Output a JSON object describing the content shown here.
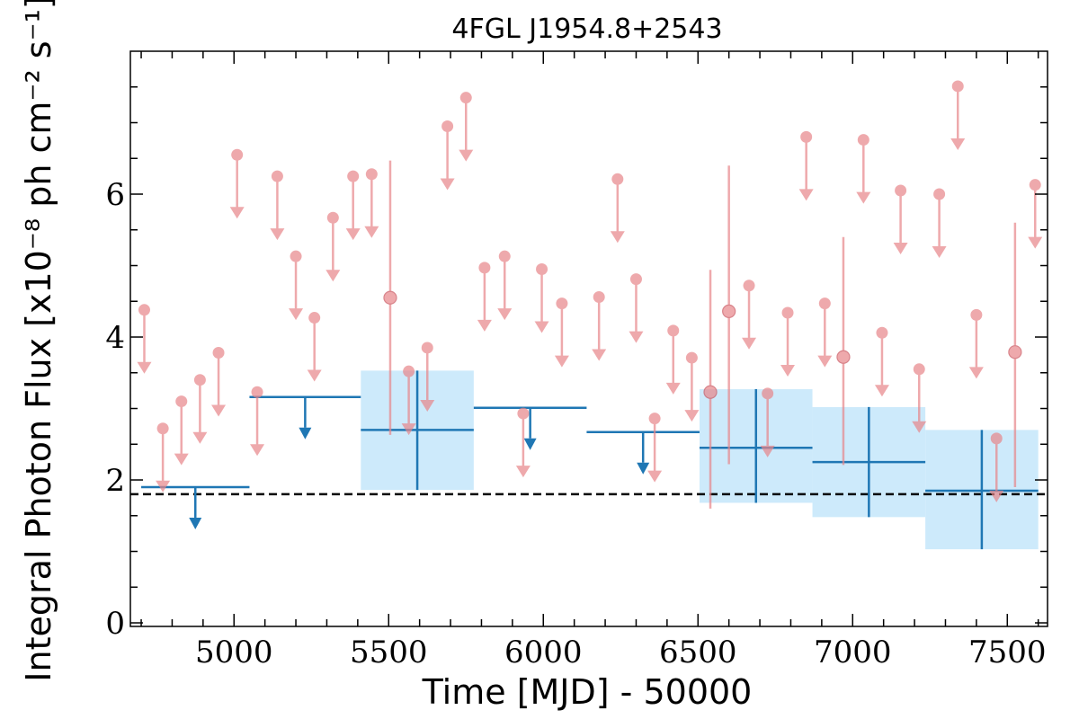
{
  "chart_data": {
    "type": "scatter",
    "title": "4FGL J1954.8+2543",
    "xlabel": "Time [MJD] - 50000",
    "ylabel": "Integral Photon Flux [x10⁻⁸ ph cm⁻² s⁻¹]",
    "xlim": [
      4665,
      7630
    ],
    "ylim": [
      -0.05,
      8.0
    ],
    "xticks": [
      5000,
      5500,
      6000,
      6500,
      7000,
      7500
    ],
    "xtick_labels": [
      "5000",
      "5500",
      "6000",
      "6500",
      "7000",
      "7500"
    ],
    "yticks": [
      0,
      2,
      4,
      6
    ],
    "ytick_labels": [
      "0",
      "2",
      "4",
      "6"
    ],
    "reference_line": {
      "y": 1.8,
      "style": "dashed"
    },
    "colors": {
      "short_bin": "#e8868a",
      "long_bin": "#1f77b4",
      "long_bin_band": "#cdeafb",
      "reference": "#000000"
    },
    "short_bins": {
      "upper_limits": [
        {
          "x": 4710,
          "y": 4.38
        },
        {
          "x": 4770,
          "y": 2.72
        },
        {
          "x": 4830,
          "y": 3.1
        },
        {
          "x": 4890,
          "y": 3.4
        },
        {
          "x": 4950,
          "y": 3.78
        },
        {
          "x": 5010,
          "y": 6.55
        },
        {
          "x": 5075,
          "y": 3.23
        },
        {
          "x": 5140,
          "y": 6.25
        },
        {
          "x": 5200,
          "y": 5.13
        },
        {
          "x": 5260,
          "y": 4.27
        },
        {
          "x": 5320,
          "y": 5.67
        },
        {
          "x": 5385,
          "y": 6.25
        },
        {
          "x": 5445,
          "y": 6.28
        },
        {
          "x": 5565,
          "y": 3.52
        },
        {
          "x": 5625,
          "y": 3.85
        },
        {
          "x": 5690,
          "y": 6.95
        },
        {
          "x": 5750,
          "y": 7.35
        },
        {
          "x": 5810,
          "y": 4.97
        },
        {
          "x": 5875,
          "y": 5.13
        },
        {
          "x": 5935,
          "y": 2.93
        },
        {
          "x": 5995,
          "y": 4.95
        },
        {
          "x": 6060,
          "y": 4.47
        },
        {
          "x": 6180,
          "y": 4.56
        },
        {
          "x": 6240,
          "y": 6.21
        },
        {
          "x": 6300,
          "y": 4.81
        },
        {
          "x": 6360,
          "y": 2.86
        },
        {
          "x": 6420,
          "y": 4.09
        },
        {
          "x": 6480,
          "y": 3.71
        },
        {
          "x": 6665,
          "y": 4.72
        },
        {
          "x": 6725,
          "y": 3.21
        },
        {
          "x": 6790,
          "y": 4.34
        },
        {
          "x": 6850,
          "y": 6.8
        },
        {
          "x": 6910,
          "y": 4.47
        },
        {
          "x": 7035,
          "y": 6.76
        },
        {
          "x": 7095,
          "y": 4.06
        },
        {
          "x": 7155,
          "y": 6.05
        },
        {
          "x": 7215,
          "y": 3.55
        },
        {
          "x": 7280,
          "y": 6.0
        },
        {
          "x": 7340,
          "y": 7.51
        },
        {
          "x": 7400,
          "y": 4.31
        },
        {
          "x": 7465,
          "y": 2.58
        },
        {
          "x": 7590,
          "y": 6.13
        }
      ],
      "detections": [
        {
          "x": 5505,
          "y": 4.55,
          "ylow": 2.63,
          "yhigh": 6.47
        },
        {
          "x": 6540,
          "y": 3.23,
          "ylow": 1.6,
          "yhigh": 4.94
        },
        {
          "x": 6600,
          "y": 4.36,
          "ylow": 2.22,
          "yhigh": 6.4
        },
        {
          "x": 6970,
          "y": 3.72,
          "ylow": 2.21,
          "yhigh": 5.4
        },
        {
          "x": 7525,
          "y": 3.79,
          "ylow": 1.9,
          "yhigh": 5.6
        }
      ]
    },
    "long_bins": {
      "upper_limits": [
        {
          "xmin": 4700,
          "xmax": 5050,
          "y": 1.9
        },
        {
          "xmin": 5050,
          "xmax": 5410,
          "y": 3.16
        },
        {
          "xmin": 5775,
          "xmax": 6140,
          "y": 3.01
        },
        {
          "xmin": 6140,
          "xmax": 6505,
          "y": 2.67
        }
      ],
      "detections": [
        {
          "xmin": 5410,
          "xmax": 5775,
          "y": 2.7,
          "ylow": 1.86,
          "yhigh": 3.53
        },
        {
          "xmin": 6505,
          "xmax": 6870,
          "y": 2.45,
          "ylow": 1.68,
          "yhigh": 3.27
        },
        {
          "xmin": 6870,
          "xmax": 7235,
          "y": 2.25,
          "ylow": 1.48,
          "yhigh": 3.02
        },
        {
          "xmin": 7235,
          "xmax": 7600,
          "y": 1.85,
          "ylow": 1.03,
          "yhigh": 2.7
        }
      ]
    }
  }
}
